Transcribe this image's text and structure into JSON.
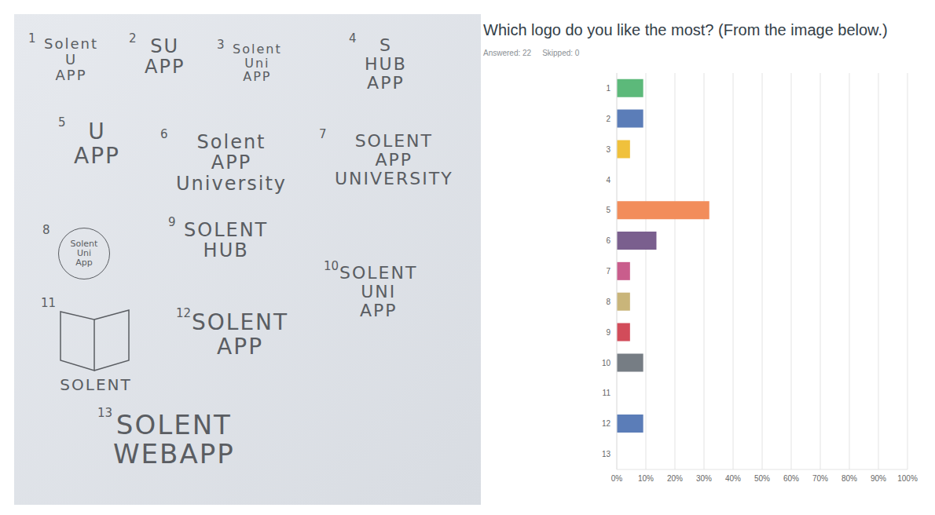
{
  "chart_data": {
    "type": "bar",
    "title": "Which logo do you like the most? (From the image below.)",
    "subtitle": [
      "Answered: 22",
      "Skipped: 0"
    ],
    "orientation": "horizontal",
    "categories": [
      "1",
      "2",
      "3",
      "4",
      "5",
      "6",
      "7",
      "8",
      "9",
      "10",
      "11",
      "12",
      "13"
    ],
    "values": [
      9.09,
      9.09,
      4.55,
      0,
      31.82,
      13.64,
      4.55,
      4.55,
      4.55,
      9.09,
      0,
      9.09,
      0
    ],
    "colors": [
      "#5cb97a",
      "#5b7db8",
      "#f0c13c",
      "#4bb8b8",
      "#f28d5b",
      "#7a5f8e",
      "#c95d8c",
      "#c9b57a",
      "#d24c5a",
      "#767d84",
      "#8cbf5c",
      "#5b7db8",
      "#f0c13c"
    ],
    "xlim": [
      0,
      100
    ],
    "xticks": [
      {
        "value": 0,
        "label": "0%"
      },
      {
        "value": 10,
        "label": "10%"
      },
      {
        "value": 20,
        "label": "20%"
      },
      {
        "value": 30,
        "label": "30%"
      },
      {
        "value": 40,
        "label": "40%"
      },
      {
        "value": 50,
        "label": "50%"
      },
      {
        "value": 60,
        "label": "60%"
      },
      {
        "value": 70,
        "label": "70%"
      },
      {
        "value": 80,
        "label": "80%"
      },
      {
        "value": 90,
        "label": "90%"
      },
      {
        "value": 100,
        "label": "100%"
      }
    ],
    "grid": true
  },
  "sketch": {
    "logos": [
      {
        "number": "1",
        "lines": [
          "Solent",
          "U",
          "APP"
        ]
      },
      {
        "number": "2",
        "lines": [
          "SU",
          "APP"
        ]
      },
      {
        "number": "3",
        "lines": [
          "Solent",
          "Uni",
          "APP"
        ]
      },
      {
        "number": "4",
        "lines": [
          "S",
          "HUB",
          "APP"
        ]
      },
      {
        "number": "5",
        "lines": [
          "U",
          "APP"
        ]
      },
      {
        "number": "6",
        "lines": [
          "Solent",
          "APP",
          "University"
        ]
      },
      {
        "number": "7",
        "lines": [
          "SOLENT",
          "APP",
          "UNIVERSITY"
        ]
      },
      {
        "number": "8",
        "lines": [
          "Solent",
          "Uni",
          "App"
        ]
      },
      {
        "number": "9",
        "lines": [
          "SOLENT",
          "HUB"
        ]
      },
      {
        "number": "10",
        "lines": [
          "SOLENT",
          "UNI",
          "APP"
        ]
      },
      {
        "number": "11",
        "lines": [
          "SOLENT"
        ]
      },
      {
        "number": "12",
        "lines": [
          "SOLENT",
          "APP"
        ]
      },
      {
        "number": "13",
        "lines": [
          "SOLENT",
          "WEBAPP"
        ]
      }
    ]
  }
}
